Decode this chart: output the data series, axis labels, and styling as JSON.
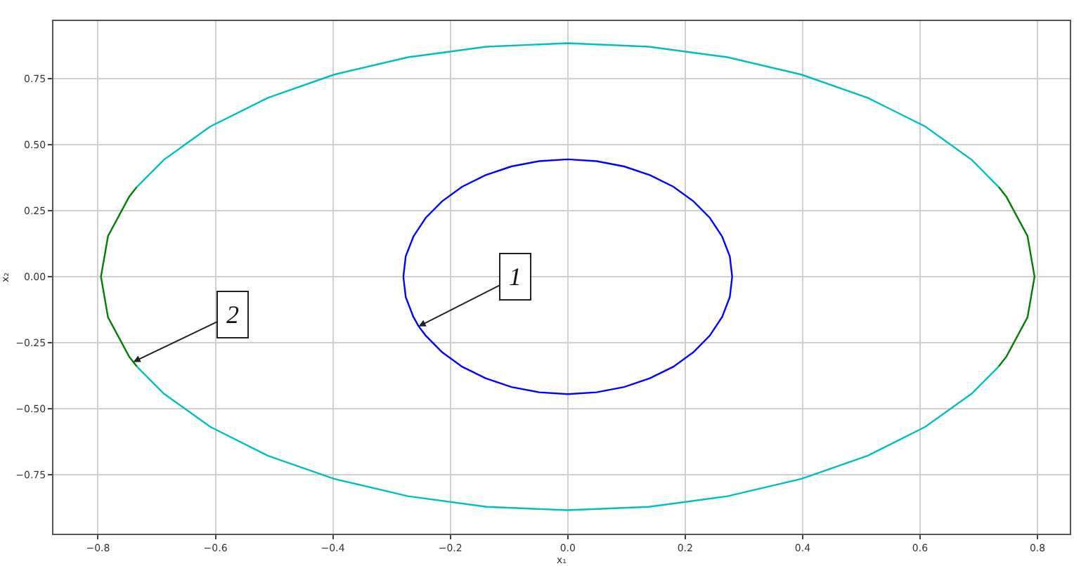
{
  "chart_data": {
    "type": "line",
    "xlabel": "x₁",
    "ylabel": "x₂",
    "series": [
      {
        "color": "#0000ff",
        "x": [
          0.28,
          0.276,
          0.263,
          0.242,
          0.214,
          0.18,
          0.14,
          0.096,
          0.049,
          0,
          -0.049,
          -0.096,
          -0.14,
          -0.18,
          -0.214,
          -0.242,
          -0.263,
          -0.276,
          -0.28,
          null,
          -0.28,
          -0.276,
          -0.263,
          -0.254,
          -0.242,
          -0.214,
          -0.18,
          -0.14,
          -0.096,
          -0.049,
          0,
          0.049,
          0.096,
          0.14,
          0.18,
          0.214,
          0.242,
          0.263,
          0.276,
          0.28
        ],
        "values": [
          0,
          0.077,
          0.152,
          0.223,
          0.286,
          0.341,
          0.385,
          0.418,
          0.438,
          0.445,
          0.438,
          0.418,
          0.385,
          0.341,
          0.286,
          0.223,
          0.152,
          0.077,
          0,
          null,
          0,
          -0.077,
          -0.152,
          -0.188,
          -0.223,
          -0.286,
          -0.341,
          -0.385,
          -0.418,
          -0.438,
          -0.445,
          -0.438,
          -0.418,
          -0.385,
          -0.341,
          -0.286,
          -0.223,
          -0.152,
          -0.077,
          0
        ]
      },
      {
        "color": "#00bfbf",
        "x": [
          0.734,
          0.688,
          0.609,
          0.511,
          0.398,
          0.272,
          0.138,
          0,
          -0.138,
          -0.272,
          -0.398,
          -0.511,
          -0.609,
          -0.688,
          -0.734,
          null,
          -0.734,
          -0.688,
          -0.609,
          -0.511,
          -0.398,
          -0.272,
          -0.138,
          0,
          0.138,
          0.272,
          0.398,
          0.511,
          0.609,
          0.688,
          0.734
        ],
        "values": [
          0.34,
          0.443,
          0.569,
          0.678,
          0.766,
          0.832,
          0.872,
          0.885,
          0.872,
          0.832,
          0.766,
          0.678,
          0.569,
          0.443,
          0.34,
          null,
          -0.34,
          -0.443,
          -0.569,
          -0.678,
          -0.766,
          -0.832,
          -0.872,
          -0.885,
          -0.872,
          -0.832,
          -0.766,
          -0.678,
          -0.569,
          -0.443,
          -0.34
        ]
      },
      {
        "color": "#008000",
        "x": [
          0.734,
          0.747,
          0.783,
          0.795,
          0.783,
          0.747,
          0.734,
          null,
          -0.734,
          -0.747,
          -0.783,
          -0.795,
          -0.783,
          -0.747,
          -0.734
        ],
        "values": [
          -0.34,
          -0.303,
          -0.154,
          0,
          0.154,
          0.303,
          0.34,
          null,
          0.34,
          0.303,
          0.154,
          0,
          -0.154,
          -0.303,
          -0.34
        ]
      }
    ],
    "xlim": [
      -0.876,
      0.855
    ],
    "ylim": [
      -0.974,
      0.969
    ],
    "xticks": [
      {
        "value": -0.8,
        "label": "−0.8"
      },
      {
        "value": -0.6,
        "label": "−0.6"
      },
      {
        "value": -0.4,
        "label": "−0.4"
      },
      {
        "value": -0.2,
        "label": "−0.2"
      },
      {
        "value": 0,
        "label": "0.0"
      },
      {
        "value": 0.2,
        "label": "0.2"
      },
      {
        "value": 0.4,
        "label": "0.4"
      },
      {
        "value": 0.6,
        "label": "0.6"
      },
      {
        "value": 0.8,
        "label": "0.8"
      }
    ],
    "yticks": [
      {
        "value": -0.75,
        "label": "−0.75"
      },
      {
        "value": -0.5,
        "label": "−0.50"
      },
      {
        "value": -0.25,
        "label": "−0.25"
      },
      {
        "value": 0,
        "label": "0.00"
      },
      {
        "value": 0.25,
        "label": "0.25"
      },
      {
        "value": 0.5,
        "label": "0.50"
      },
      {
        "value": 0.75,
        "label": "0.75"
      }
    ],
    "grid": true,
    "annotations": [
      {
        "text": "1",
        "x": -0.254,
        "y": -0.188
      },
      {
        "text": "2",
        "x": -0.74,
        "y": -0.323
      }
    ]
  }
}
